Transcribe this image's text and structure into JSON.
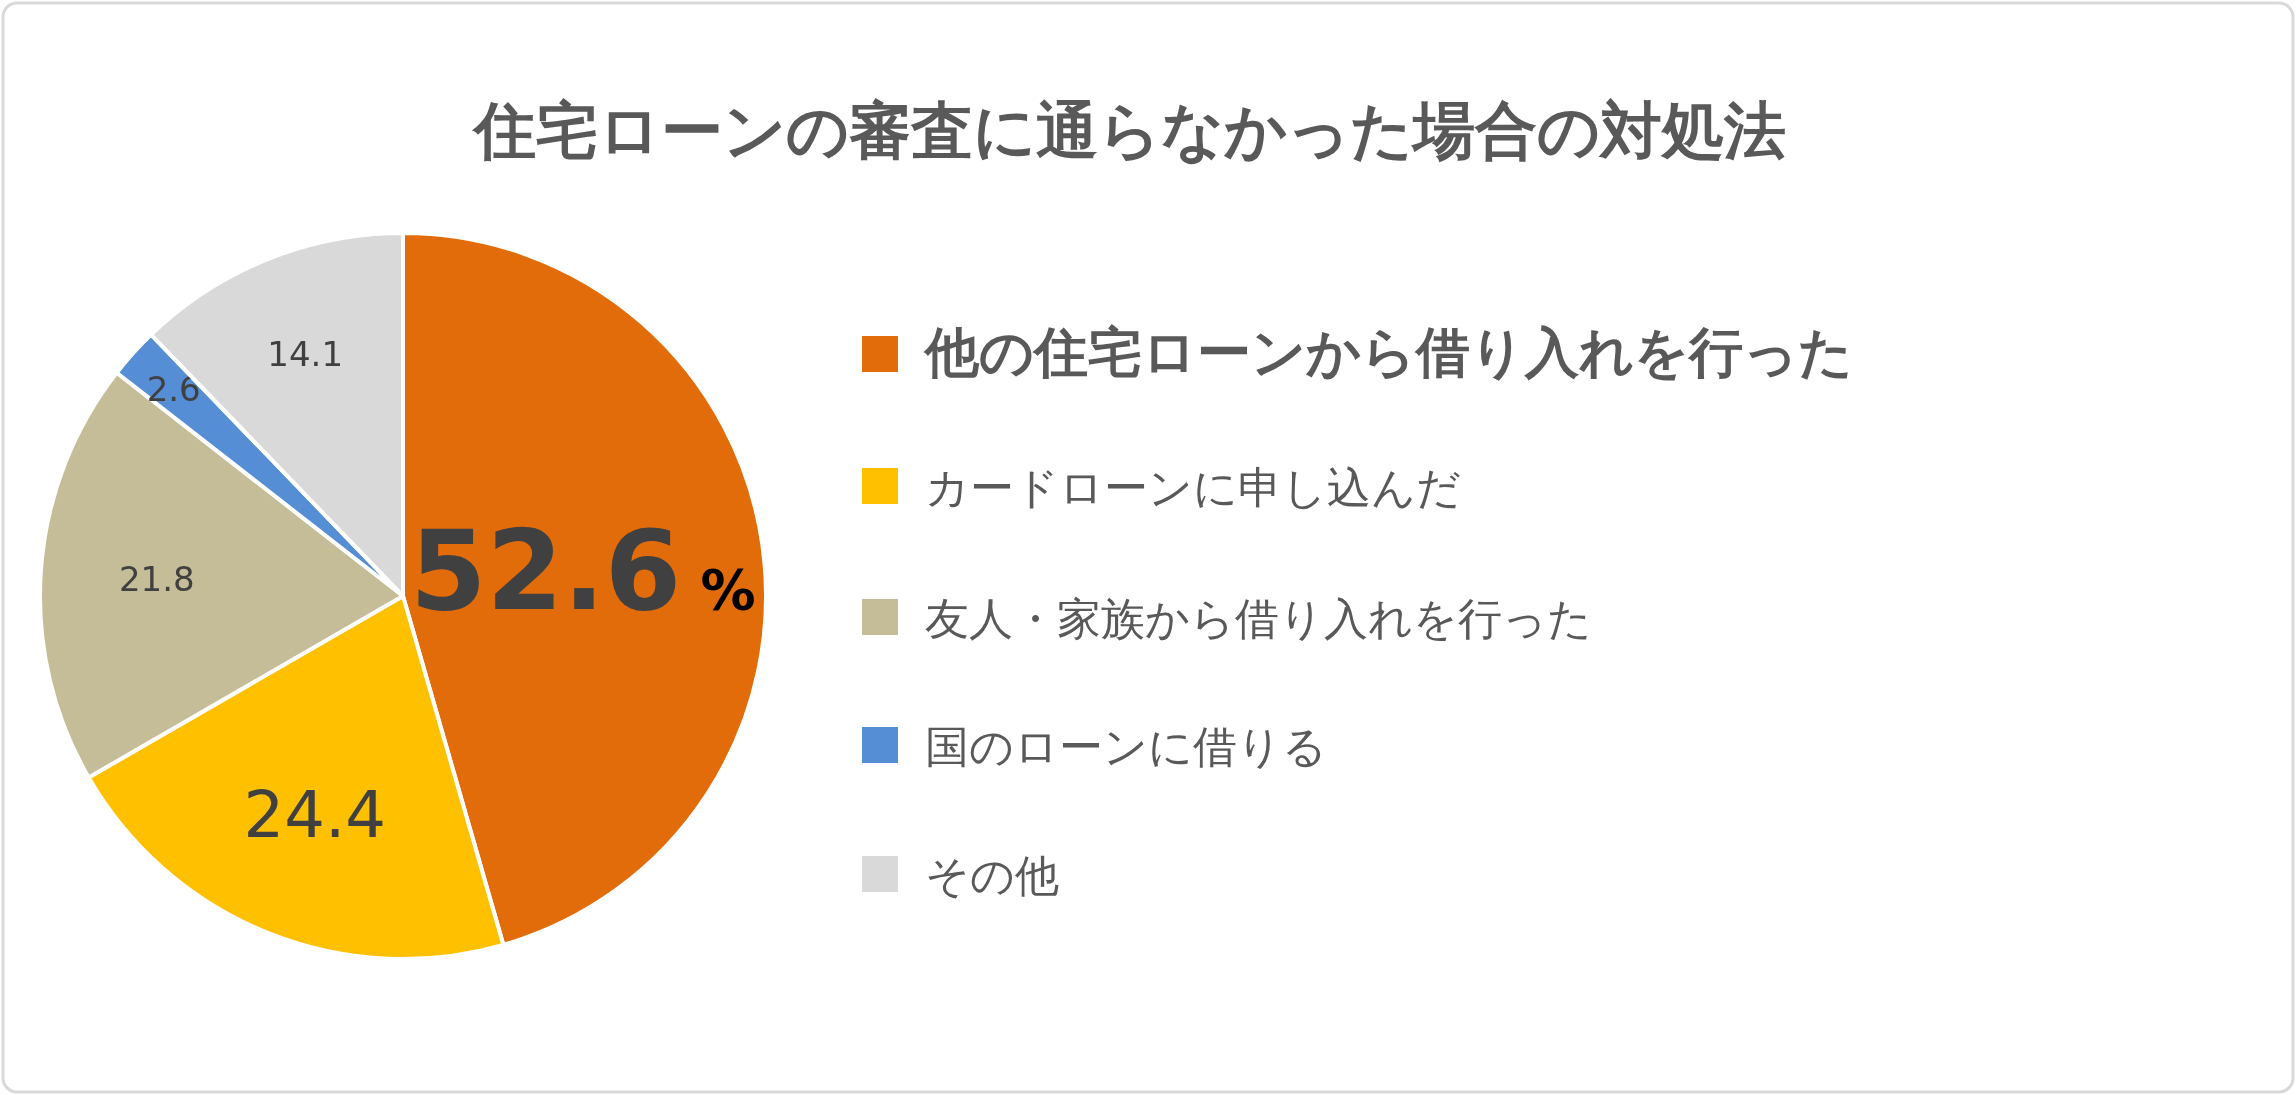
{
  "chart_data": {
    "type": "pie",
    "title": "住宅ローンの審査に通らなかった場合の対処法",
    "categories": [
      "他の住宅ローンから借り入れを行った",
      "カードローンに申し込んだ",
      "友人・家族から借り入れを行った",
      "国のローンに借りる",
      "その他"
    ],
    "values": [
      52.6,
      24.4,
      21.8,
      2.6,
      14.1
    ],
    "colors": [
      "#e36c0a",
      "#ffc000",
      "#c4bd97",
      "#558ed5",
      "#d9d9d9"
    ],
    "value_labels": [
      "52.6%",
      "24.4",
      "21.8",
      "2.6",
      "14.1"
    ],
    "legend": "right"
  }
}
